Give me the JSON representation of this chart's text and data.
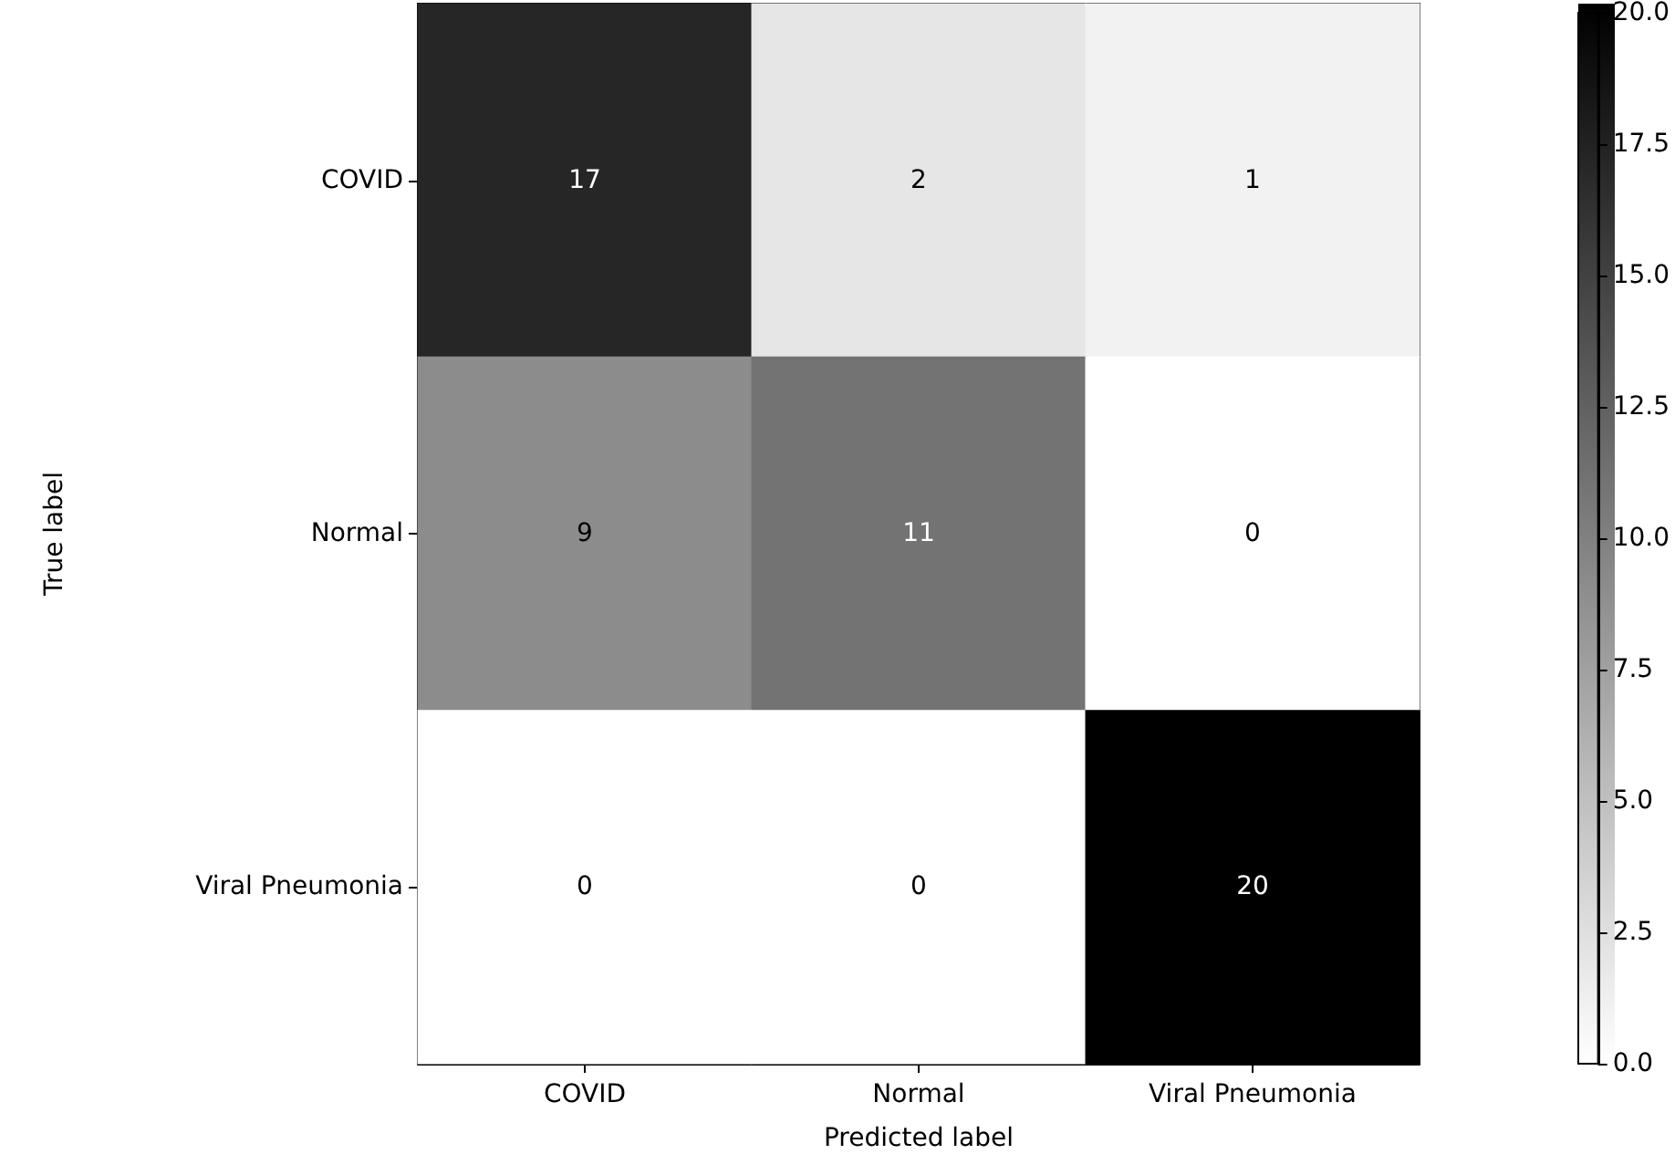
{
  "chart_data": {
    "type": "heatmap",
    "xlabel": "Predicted label",
    "ylabel": "True label",
    "categories": [
      "COVID",
      "Normal",
      "Viral Pneumonia"
    ],
    "y_categories": [
      "COVID",
      "Normal",
      "Viral Pneumonia"
    ],
    "cells": [
      [
        17,
        2,
        1
      ],
      [
        9,
        11,
        0
      ],
      [
        0,
        0,
        20
      ]
    ],
    "data_labels": true,
    "clim": [
      0,
      20
    ],
    "cticks": [
      {
        "value": 0,
        "label": "0.0"
      },
      {
        "value": 2.5,
        "label": "2.5"
      },
      {
        "value": 5,
        "label": "5.0"
      },
      {
        "value": 7.5,
        "label": "7.5"
      },
      {
        "value": 10,
        "label": "10.0"
      },
      {
        "value": 12.5,
        "label": "12.5"
      },
      {
        "value": 15,
        "label": "15.0"
      },
      {
        "value": 17.5,
        "label": "17.5"
      },
      {
        "value": 20,
        "label": "20.0"
      }
    ]
  }
}
